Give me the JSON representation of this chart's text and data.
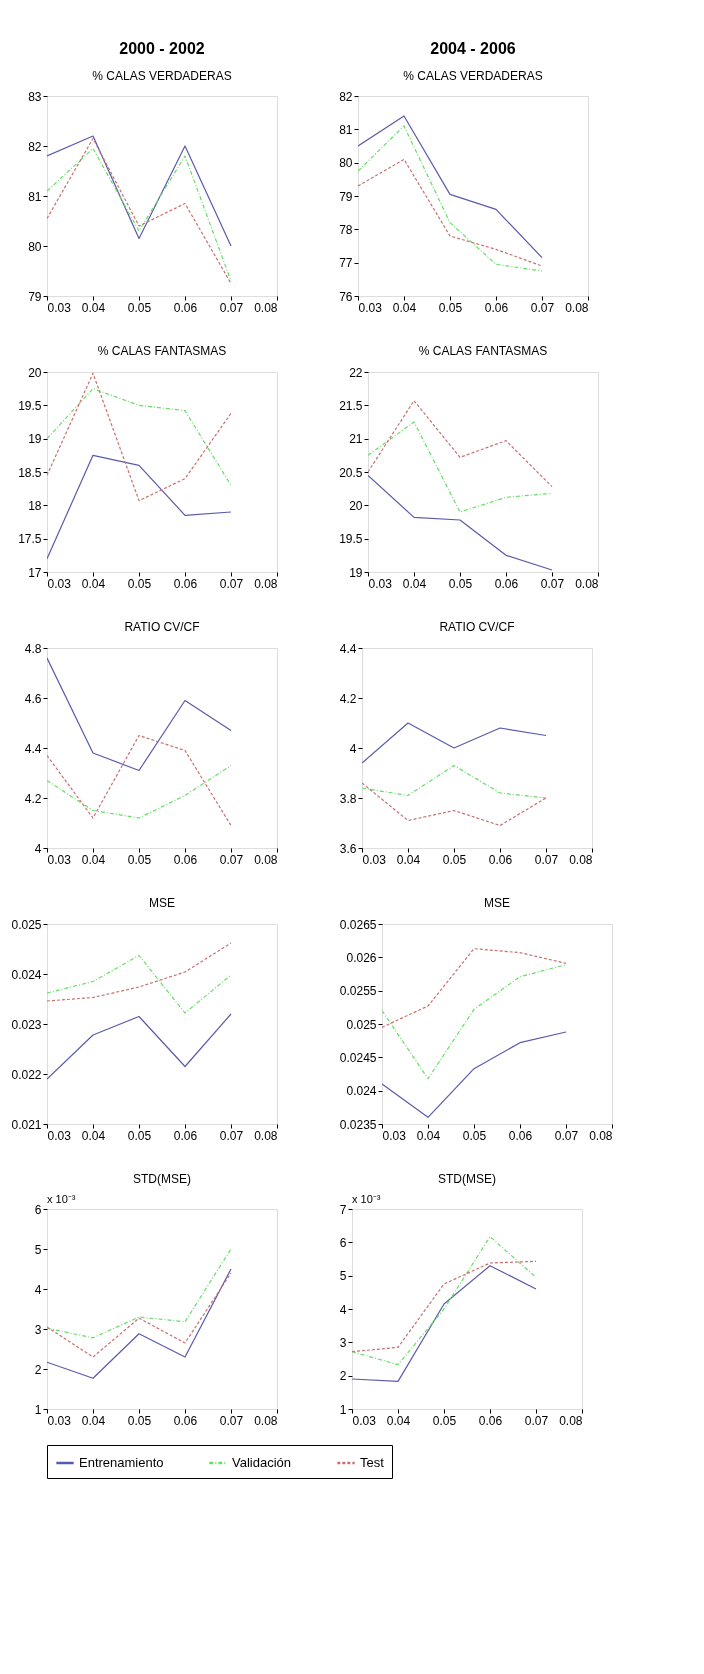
{
  "chart_data": [
    {
      "type": "line",
      "title": "% CALAS VERDADERAS",
      "annotations": [
        "2000 - 2002"
      ],
      "x": [
        0.03,
        0.04,
        0.05,
        0.06,
        0.07
      ],
      "xlim": [
        0.03,
        0.08
      ],
      "xticks": [
        0.03,
        0.04,
        0.05,
        0.06,
        0.07,
        0.08
      ],
      "ylim": [
        79,
        83
      ],
      "yticks": [
        79,
        80,
        81,
        82,
        83
      ],
      "grid": false,
      "legend": "bottom",
      "series": [
        {
          "name": "Entrenamiento",
          "color": "#5a5aaa",
          "line_style": "solid",
          "values": [
            81.8,
            82.2,
            80.15,
            82.0,
            80.0
          ]
        },
        {
          "name": "Validación",
          "color": "#66dd66",
          "line_style": "dashdot",
          "values": [
            81.1,
            81.95,
            80.3,
            81.8,
            79.3
          ]
        },
        {
          "name": "Test",
          "color": "#c87070",
          "line_style": "dashed",
          "values": [
            80.55,
            82.15,
            80.4,
            80.85,
            79.25
          ]
        }
      ]
    },
    {
      "type": "line",
      "title": "% CALAS VERDADERAS",
      "annotations": [
        "2004 - 2006"
      ],
      "x": [
        0.03,
        0.04,
        0.05,
        0.06,
        0.07
      ],
      "xlim": [
        0.03,
        0.08
      ],
      "xticks": [
        0.03,
        0.04,
        0.05,
        0.06,
        0.07,
        0.08
      ],
      "ylim": [
        76,
        82
      ],
      "yticks": [
        76,
        77,
        78,
        79,
        80,
        81,
        82
      ],
      "grid": false,
      "legend": "bottom",
      "series": [
        {
          "name": "Entrenamiento",
          "color": "#5a5aaa",
          "line_style": "solid",
          "values": [
            80.5,
            81.4,
            79.05,
            78.6,
            77.15
          ]
        },
        {
          "name": "Validación",
          "color": "#66dd66",
          "line_style": "dashdot",
          "values": [
            79.75,
            81.1,
            78.2,
            76.95,
            76.75
          ]
        },
        {
          "name": "Test",
          "color": "#c87070",
          "line_style": "dashed",
          "values": [
            79.3,
            80.1,
            77.8,
            77.4,
            76.9
          ]
        }
      ]
    },
    {
      "type": "line",
      "title": "% CALAS FANTASMAS",
      "x": [
        0.03,
        0.04,
        0.05,
        0.06,
        0.07
      ],
      "xlim": [
        0.03,
        0.08
      ],
      "xticks": [
        0.03,
        0.04,
        0.05,
        0.06,
        0.07,
        0.08
      ],
      "ylim": [
        17,
        20
      ],
      "yticks": [
        17,
        17.5,
        18,
        18.5,
        19,
        19.5,
        20
      ],
      "grid": false,
      "legend": "bottom",
      "series": [
        {
          "name": "Entrenamiento",
          "color": "#5a5aaa",
          "line_style": "solid",
          "values": [
            17.2,
            18.75,
            18.6,
            17.85,
            17.9
          ]
        },
        {
          "name": "Validación",
          "color": "#66dd66",
          "line_style": "dashdot",
          "values": [
            19.0,
            19.75,
            19.5,
            19.42,
            18.3
          ]
        },
        {
          "name": "Test",
          "color": "#c87070",
          "line_style": "dashed",
          "values": [
            18.45,
            19.98,
            18.07,
            18.4,
            19.38
          ]
        }
      ]
    },
    {
      "type": "line",
      "title": "% CALAS FANTASMAS",
      "x": [
        0.03,
        0.04,
        0.05,
        0.06,
        0.07
      ],
      "xlim": [
        0.03,
        0.08
      ],
      "xticks": [
        0.03,
        0.04,
        0.05,
        0.06,
        0.07,
        0.08
      ],
      "ylim": [
        19,
        22
      ],
      "yticks": [
        19,
        19.5,
        20,
        20.5,
        21,
        21.5,
        22
      ],
      "grid": false,
      "legend": "bottom",
      "series": [
        {
          "name": "Entrenamiento",
          "color": "#5a5aaa",
          "line_style": "solid",
          "values": [
            20.45,
            19.82,
            19.78,
            19.25,
            19.03
          ]
        },
        {
          "name": "Validación",
          "color": "#66dd66",
          "line_style": "dashdot",
          "values": [
            20.75,
            21.25,
            19.9,
            20.12,
            20.18
          ]
        },
        {
          "name": "Test",
          "color": "#c87070",
          "line_style": "dashed",
          "values": [
            20.5,
            21.57,
            20.72,
            20.97,
            20.28
          ]
        }
      ]
    },
    {
      "type": "line",
      "title": "RATIO CV/CF",
      "x": [
        0.03,
        0.04,
        0.05,
        0.06,
        0.07
      ],
      "xlim": [
        0.03,
        0.08
      ],
      "xticks": [
        0.03,
        0.04,
        0.05,
        0.06,
        0.07,
        0.08
      ],
      "ylim": [
        4,
        4.8
      ],
      "yticks": [
        4,
        4.2,
        4.4,
        4.6,
        4.8
      ],
      "grid": false,
      "legend": "bottom",
      "series": [
        {
          "name": "Entrenamiento",
          "color": "#5a5aaa",
          "line_style": "solid",
          "values": [
            4.76,
            4.38,
            4.31,
            4.59,
            4.47
          ]
        },
        {
          "name": "Validación",
          "color": "#66dd66",
          "line_style": "dashdot",
          "values": [
            4.27,
            4.15,
            4.12,
            4.21,
            4.33
          ]
        },
        {
          "name": "Test",
          "color": "#c87070",
          "line_style": "dashed",
          "values": [
            4.37,
            4.12,
            4.45,
            4.39,
            4.09
          ]
        }
      ]
    },
    {
      "type": "line",
      "title": "RATIO CV/CF",
      "x": [
        0.03,
        0.04,
        0.05,
        0.06,
        0.07
      ],
      "xlim": [
        0.03,
        0.08
      ],
      "xticks": [
        0.03,
        0.04,
        0.05,
        0.06,
        0.07,
        0.08
      ],
      "ylim": [
        3.6,
        4.4
      ],
      "yticks": [
        3.6,
        3.8,
        4,
        4.2,
        4.4
      ],
      "grid": false,
      "legend": "bottom",
      "series": [
        {
          "name": "Entrenamiento",
          "color": "#5a5aaa",
          "line_style": "solid",
          "values": [
            3.94,
            4.1,
            4.0,
            4.08,
            4.05
          ]
        },
        {
          "name": "Validación",
          "color": "#66dd66",
          "line_style": "dashdot",
          "values": [
            3.84,
            3.81,
            3.93,
            3.82,
            3.8
          ]
        },
        {
          "name": "Test",
          "color": "#c87070",
          "line_style": "dashed",
          "values": [
            3.86,
            3.71,
            3.75,
            3.69,
            3.8
          ]
        }
      ]
    },
    {
      "type": "line",
      "title": "MSE",
      "x": [
        0.03,
        0.04,
        0.05,
        0.06,
        0.07
      ],
      "xlim": [
        0.03,
        0.08
      ],
      "xticks": [
        0.03,
        0.04,
        0.05,
        0.06,
        0.07,
        0.08
      ],
      "ylim": [
        0.021,
        0.025
      ],
      "yticks": [
        0.021,
        0.022,
        0.023,
        0.024,
        0.025
      ],
      "grid": false,
      "legend": "bottom",
      "series": [
        {
          "name": "Entrenamiento",
          "color": "#5a5aaa",
          "line_style": "solid",
          "values": [
            0.0219,
            0.02278,
            0.02315,
            0.02215,
            0.0232
          ]
        },
        {
          "name": "Validación",
          "color": "#66dd66",
          "line_style": "dashdot",
          "values": [
            0.02362,
            0.02385,
            0.02437,
            0.02322,
            0.02398
          ]
        },
        {
          "name": "Test",
          "color": "#c87070",
          "line_style": "dashed",
          "values": [
            0.02346,
            0.02353,
            0.02374,
            0.02404,
            0.02462
          ]
        }
      ]
    },
    {
      "type": "line",
      "title": "MSE",
      "x": [
        0.03,
        0.04,
        0.05,
        0.06,
        0.07
      ],
      "xlim": [
        0.03,
        0.08
      ],
      "xticks": [
        0.03,
        0.04,
        0.05,
        0.06,
        0.07,
        0.08
      ],
      "ylim": [
        0.0235,
        0.0265
      ],
      "yticks": [
        0.0235,
        0.024,
        0.0245,
        0.025,
        0.0255,
        0.026,
        0.0265
      ],
      "grid": false,
      "legend": "bottom",
      "series": [
        {
          "name": "Entrenamiento",
          "color": "#5a5aaa",
          "line_style": "solid",
          "values": [
            0.0241,
            0.0236,
            0.02433,
            0.02472,
            0.02488
          ]
        },
        {
          "name": "Validación",
          "color": "#66dd66",
          "line_style": "dashdot",
          "values": [
            0.0252,
            0.02418,
            0.02522,
            0.02571,
            0.02589
          ]
        },
        {
          "name": "Test",
          "color": "#c87070",
          "line_style": "dashed",
          "values": [
            0.02495,
            0.02527,
            0.02613,
            0.02607,
            0.02591
          ]
        }
      ]
    },
    {
      "type": "line",
      "title": "STD(MSE)",
      "annotations": [
        "x 10⁻³"
      ],
      "x": [
        0.03,
        0.04,
        0.05,
        0.06,
        0.07
      ],
      "xlim": [
        0.03,
        0.08
      ],
      "xticks": [
        0.03,
        0.04,
        0.05,
        0.06,
        0.07,
        0.08
      ],
      "ylim": [
        1,
        6
      ],
      "yticks": [
        1,
        2,
        3,
        4,
        5,
        6
      ],
      "grid": false,
      "legend": "bottom",
      "series": [
        {
          "name": "Entrenamiento",
          "color": "#5a5aaa",
          "line_style": "solid",
          "values": [
            2.17,
            1.77,
            2.88,
            2.3,
            4.5
          ]
        },
        {
          "name": "Validación",
          "color": "#66dd66",
          "line_style": "dashdot",
          "values": [
            3.02,
            2.78,
            3.3,
            3.18,
            5.0
          ]
        },
        {
          "name": "Test",
          "color": "#c87070",
          "line_style": "dashed",
          "values": [
            3.05,
            2.3,
            3.27,
            2.65,
            4.4
          ]
        }
      ]
    },
    {
      "type": "line",
      "title": "STD(MSE)",
      "annotations": [
        "x 10⁻³"
      ],
      "x": [
        0.03,
        0.04,
        0.05,
        0.06,
        0.07
      ],
      "xlim": [
        0.03,
        0.08
      ],
      "xticks": [
        0.03,
        0.04,
        0.05,
        0.06,
        0.07,
        0.08
      ],
      "ylim": [
        1,
        7
      ],
      "yticks": [
        1,
        2,
        3,
        4,
        5,
        6,
        7
      ],
      "grid": false,
      "legend": "bottom",
      "series": [
        {
          "name": "Entrenamiento",
          "color": "#5a5aaa",
          "line_style": "solid",
          "values": [
            1.9,
            1.83,
            4.15,
            5.3,
            4.6
          ]
        },
        {
          "name": "Validación",
          "color": "#66dd66",
          "line_style": "dashdot",
          "values": [
            2.72,
            2.33,
            4.0,
            6.17,
            4.95
          ]
        },
        {
          "name": "Test",
          "color": "#c87070",
          "line_style": "dashed",
          "values": [
            2.72,
            2.85,
            4.75,
            5.38,
            5.43
          ]
        }
      ]
    }
  ]
}
